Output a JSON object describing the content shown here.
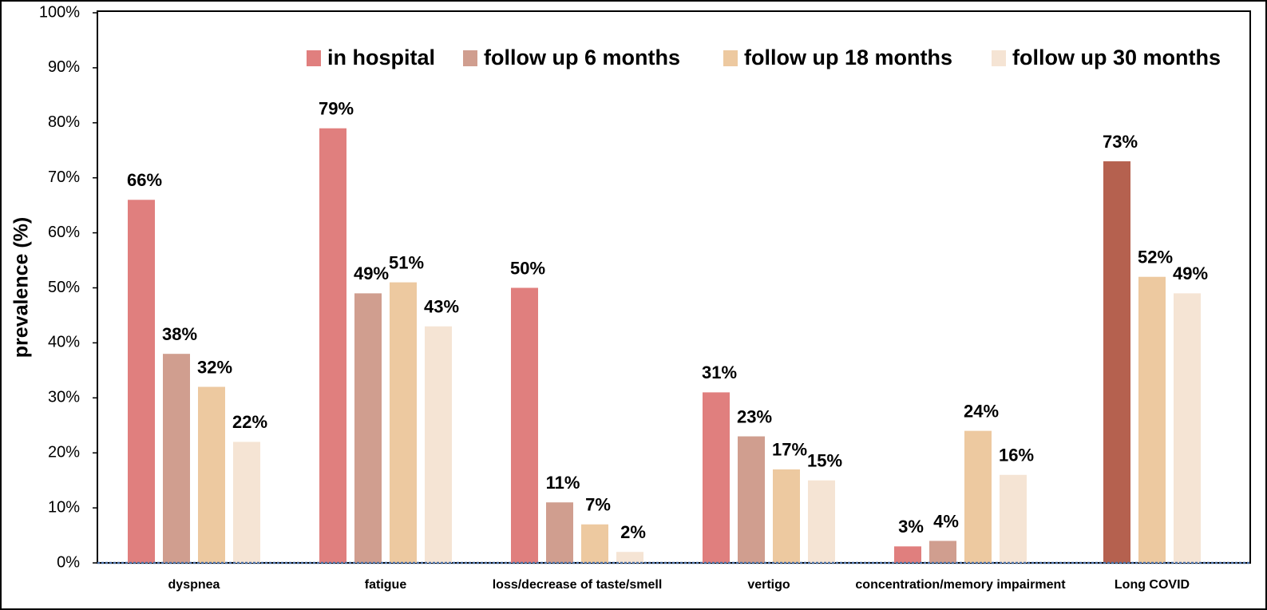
{
  "chart_data": {
    "type": "bar",
    "y_label": "prevalence (%)",
    "categories": [
      "dyspnea",
      "fatigue",
      "loss/decrease of taste/smell",
      "vertigo",
      "concentration/memory impairment",
      "Long COVID"
    ],
    "series": [
      {
        "name": "in hospital",
        "color": "#e07f7e",
        "values": [
          66,
          79,
          50,
          31,
          3,
          null
        ],
        "value_labels": [
          "66%",
          "79%",
          "50%",
          "31%",
          "3%",
          null
        ]
      },
      {
        "name": "follow up 6 months",
        "color": "#d09e8f",
        "colors": [
          "#d09e8f",
          "#d09e8f",
          "#d09e8f",
          "#d09e8f",
          "#d09e8f",
          "#b5614f"
        ],
        "values": [
          38,
          49,
          11,
          23,
          4,
          73
        ],
        "value_labels": [
          "38%",
          "49%",
          "11%",
          "23%",
          "4%",
          "73%"
        ]
      },
      {
        "name": "follow up 18 months",
        "color": "#edc9a0",
        "values": [
          32,
          51,
          7,
          17,
          24,
          52
        ],
        "value_labels": [
          "32%",
          "51%",
          "7%",
          "17%",
          "24%",
          "52%"
        ]
      },
      {
        "name": "follow up 30 months",
        "color": "#f5e4d4",
        "values": [
          22,
          43,
          2,
          15,
          16,
          49
        ],
        "value_labels": [
          "22%",
          "43%",
          "2%",
          "15%",
          "16%",
          "49%"
        ]
      }
    ],
    "ylim": [
      0,
      100
    ],
    "yticks": [
      {
        "value": 0,
        "label": "0%"
      },
      {
        "value": 10,
        "label": "10%"
      },
      {
        "value": 20,
        "label": "20%"
      },
      {
        "value": 30,
        "label": "30%"
      },
      {
        "value": 40,
        "label": "40%"
      },
      {
        "value": 50,
        "label": "50%"
      },
      {
        "value": 60,
        "label": "60%"
      },
      {
        "value": 70,
        "label": "70%"
      },
      {
        "value": 80,
        "label": "80%"
      },
      {
        "value": 90,
        "label": "90%"
      },
      {
        "value": 100,
        "label": "100%"
      }
    ],
    "legend": "top-right"
  }
}
